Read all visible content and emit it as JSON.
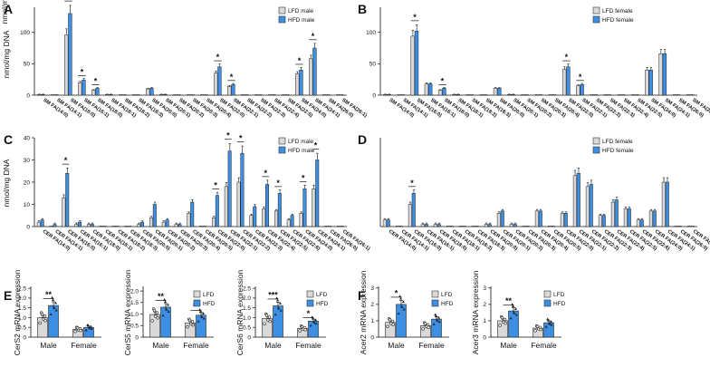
{
  "colors": {
    "lfd": "#d9d9d9",
    "hfd": "#3d8fe3",
    "axis": "#111111"
  },
  "chart_data": [
    {
      "panel": "A",
      "type": "bar",
      "ylabel": "nmol/mg DNA",
      "legend": [
        "LFD male",
        "HFD male"
      ],
      "ylim": [
        0,
        140
      ],
      "yticks": [
        0,
        50,
        100
      ],
      "categories": [
        "SM FA(14:0)",
        "SM FA(14:1)",
        "SM FA(16:0)",
        "SM FA(16:1)",
        "SM FA(18:0)",
        "SM FA(18:1)",
        "SM FA(18:2)",
        "SM FA(18:3)",
        "SM FA(20:0)",
        "SM FA(20:1)",
        "SM FA(20:2)",
        "SM FA(20:3)",
        "SM FA(20:4)",
        "SM FA(22:0)",
        "SM FA(22:1)",
        "SM FA(22:2)",
        "SM FA(22:3)",
        "SM FA(22:4)",
        "SM FA(22:5)",
        "SM FA(24:0)",
        "SM FA(24:1)",
        "SM FA(26:0)",
        "SM FA(26:1)"
      ],
      "series": [
        {
          "name": "LFD male",
          "values": [
            1,
            0,
            96,
            20,
            8,
            1,
            0,
            0,
            10,
            1,
            0,
            0,
            0,
            35,
            14,
            0,
            0,
            0,
            0,
            34,
            58,
            0,
            0
          ]
        },
        {
          "name": "HFD male",
          "values": [
            1,
            0,
            130,
            24,
            11,
            1,
            0,
            0,
            11,
            1,
            0,
            0,
            0,
            45,
            17,
            0,
            0,
            0,
            0,
            40,
            75,
            0,
            0
          ]
        }
      ],
      "significance": [
        2,
        3,
        4,
        13,
        14,
        19,
        20
      ]
    },
    {
      "panel": "B",
      "type": "bar",
      "ylabel": "nmol/mg DNA",
      "legend": [
        "LFD female",
        "HFD female"
      ],
      "ylim": [
        0,
        140
      ],
      "yticks": [
        0,
        50,
        100
      ],
      "categories": [
        "SM FA(14:0)",
        "SM FA(14:1)",
        "SM FA(16:0)",
        "SM FA(16:1)",
        "SM FA(18:0)",
        "SM FA(18:1)",
        "SM FA(18:2)",
        "SM FA(18:3)",
        "SM FA(20:0)",
        "SM FA(20:1)",
        "SM FA(20:2)",
        "SM FA(20:3)",
        "SM FA(20:4)",
        "SM FA(22:0)",
        "SM FA(22:1)",
        "SM FA(22:2)",
        "SM FA(22:3)",
        "SM FA(22:4)",
        "SM FA(22:5)",
        "SM FA(24:0)",
        "SM FA(24:1)",
        "SM FA(26:0)",
        "SM FA(26:1)"
      ],
      "series": [
        {
          "name": "LFD female",
          "values": [
            1,
            0,
            94,
            18,
            8,
            1,
            0,
            0,
            11,
            1,
            0,
            0,
            0,
            41,
            15,
            0,
            0,
            0,
            0,
            40,
            66,
            0,
            0
          ]
        },
        {
          "name": "HFD female",
          "values": [
            1,
            0,
            102,
            18,
            11,
            1,
            0,
            0,
            11,
            1,
            0,
            0,
            0,
            45,
            17,
            0,
            0,
            0,
            0,
            40,
            66,
            0,
            0
          ]
        }
      ],
      "significance": [
        2,
        4,
        13,
        14
      ]
    },
    {
      "panel": "C",
      "type": "bar",
      "ylabel": "nmol/mg DNA",
      "legend": [
        "LFD male",
        "HFD male"
      ],
      "ylim": [
        0,
        40
      ],
      "yticks": [
        0,
        10,
        20,
        30,
        40
      ],
      "categories": [
        "CER FA(14:0)",
        "CER FA(14:1)",
        "CER FA(16:0)",
        "CER FA(16:1)",
        "CER FA(18:0)",
        "CER FA(18:1)",
        "CER FA(18:2)",
        "CER FA(18:3)",
        "CER FA(20:0)",
        "CER FA(20:1)",
        "CER FA(20:2)",
        "CER FA(20:3)",
        "CER FA(20:4)",
        "CER FA(20:5)",
        "CER FA(22:0)",
        "CER FA(22:1)",
        "CER FA(22:2)",
        "CER FA(22:3)",
        "CER FA(22:4)",
        "CER FA(22:5)",
        "CER FA(22:6)",
        "CER FA(24:0)",
        "CER FA(24:1)",
        "CER FA(26:0)",
        "CER FA(26:1)"
      ],
      "series": [
        {
          "name": "LFD male",
          "values": [
            2,
            0,
            13,
            1,
            1,
            0,
            0,
            0,
            1,
            4,
            2,
            1,
            6,
            0,
            4,
            18,
            20,
            5,
            8,
            7,
            3,
            6,
            17,
            0,
            0
          ]
        },
        {
          "name": "HFD male",
          "values": [
            3,
            1,
            24,
            2,
            1,
            0,
            0,
            0,
            2,
            10,
            3,
            1,
            11,
            0,
            14,
            34,
            33,
            9,
            19,
            15,
            5,
            17,
            30,
            0,
            0
          ]
        }
      ],
      "significance": [
        2,
        14,
        15,
        16,
        18,
        19,
        21,
        22
      ]
    },
    {
      "panel": "D",
      "type": "bar",
      "ylabel": "",
      "legend": [
        "LFD female",
        "HFD female"
      ],
      "ylim": [
        0,
        40
      ],
      "yticks": [],
      "categories": [
        "CER FA(14:0)",
        "CER FA(14:1)",
        "CER FA(16:0)",
        "CER FA(16:1)",
        "CER FA(18:0)",
        "CER FA(18:1)",
        "CER FA(18:2)",
        "CER FA(18:3)",
        "CER FA(20:0)",
        "CER FA(20:1)",
        "CER FA(20:2)",
        "CER FA(20:3)",
        "CER FA(20:4)",
        "CER FA(20:5)",
        "CER FA(22:0)",
        "CER FA(22:1)",
        "CER FA(22:2)",
        "CER FA(22:3)",
        "CER FA(22:4)",
        "CER FA(22:5)",
        "CER FA(22:6)",
        "CER FA(24:0)",
        "CER FA(24:1)",
        "CER FA(26:0)",
        "CER FA(26:1)"
      ],
      "series": [
        {
          "name": "LFD female",
          "values": [
            3,
            0,
            10,
            1,
            1,
            0,
            0,
            0,
            1,
            6,
            1,
            0,
            7,
            0,
            6,
            23,
            18,
            5,
            11,
            8,
            3,
            7,
            20,
            0,
            0
          ]
        },
        {
          "name": "HFD female",
          "values": [
            3,
            0,
            15,
            1,
            1,
            0,
            0,
            0,
            1,
            7,
            1,
            0,
            7,
            0,
            6,
            24,
            19,
            5,
            12,
            8,
            3,
            7,
            20,
            0,
            0
          ]
        }
      ],
      "significance": [
        2
      ]
    },
    {
      "panel": "E",
      "type": "bar",
      "ylabel": "CerS2 mRNA expression",
      "legend": [],
      "ylim": [
        0,
        2.6
      ],
      "yticks": [
        0,
        0.5,
        1.0,
        1.5,
        2.0,
        2.5
      ],
      "ytick_labels": [
        "0",
        "0.5",
        "1.0",
        "1.5",
        "2.0",
        "2.5"
      ],
      "categories": [
        "Male",
        "Female"
      ],
      "series": [
        {
          "name": "LFD",
          "values": [
            1.0,
            0.4
          ]
        },
        {
          "name": "HFD",
          "values": [
            1.62,
            0.5
          ]
        }
      ],
      "stars": [
        "**",
        ""
      ]
    },
    {
      "panel": "E2",
      "type": "bar",
      "ylabel": "CerS5 mRNA expression",
      "legend": [
        "LFD",
        "HFD"
      ],
      "ylim": [
        0,
        2.2
      ],
      "yticks": [
        0,
        0.5,
        1.0,
        1.5,
        2.0
      ],
      "ytick_labels": [
        "0",
        "0.5",
        "1.0",
        "1.5",
        "2.0"
      ],
      "categories": [
        "Male",
        "Female"
      ],
      "series": [
        {
          "name": "LFD",
          "values": [
            0.98,
            0.62
          ]
        },
        {
          "name": "HFD",
          "values": [
            1.3,
            0.95
          ]
        }
      ],
      "stars": [
        "**",
        "**"
      ]
    },
    {
      "panel": "E3",
      "type": "bar",
      "ylabel": "CerS6 mRNA expression",
      "legend": [
        "LFD",
        "HFD"
      ],
      "ylim": [
        0,
        2.6
      ],
      "yticks": [
        0,
        0.5,
        1.0,
        1.5,
        2.0,
        2.5
      ],
      "ytick_labels": [
        "0",
        "0.5",
        "1.0",
        "1.5",
        "2.0",
        "2.5"
      ],
      "categories": [
        "Male",
        "Female"
      ],
      "series": [
        {
          "name": "LFD",
          "values": [
            0.95,
            0.45
          ]
        },
        {
          "name": "HFD",
          "values": [
            1.6,
            0.82
          ]
        }
      ],
      "stars": [
        "***",
        "*"
      ]
    },
    {
      "panel": "F",
      "type": "bar",
      "ylabel": "Acer2 mRNA expression",
      "legend": [
        "LFD",
        "HFD"
      ],
      "ylim": [
        0,
        3.1
      ],
      "yticks": [
        0,
        1,
        2,
        3
      ],
      "ytick_labels": [
        "0",
        "1",
        "2",
        "3"
      ],
      "categories": [
        "Male",
        "Female"
      ],
      "series": [
        {
          "name": "LFD",
          "values": [
            0.9,
            0.7
          ]
        },
        {
          "name": "HFD",
          "values": [
            2.0,
            1.1
          ]
        }
      ],
      "stars": [
        "*",
        ""
      ]
    },
    {
      "panel": "F2",
      "type": "bar",
      "ylabel": "Acer3 mRNA expression",
      "legend": [
        "LFD",
        "HFD"
      ],
      "ylim": [
        0,
        3.1
      ],
      "yticks": [
        0,
        1,
        2,
        3
      ],
      "ytick_labels": [
        "0",
        "1",
        "2",
        "3"
      ],
      "categories": [
        "Male",
        "Female"
      ],
      "series": [
        {
          "name": "LFD",
          "values": [
            1.0,
            0.55
          ]
        },
        {
          "name": "HFD",
          "values": [
            1.6,
            0.88
          ]
        }
      ],
      "stars": [
        "**",
        ""
      ]
    }
  ]
}
